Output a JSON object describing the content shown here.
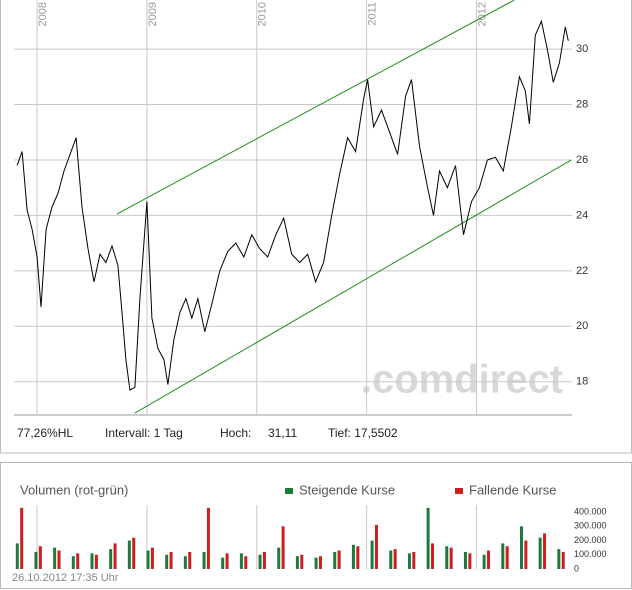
{
  "chart_data": [
    {
      "type": "line",
      "color": "#000000",
      "grid": true,
      "xlim": [
        2007.79,
        2012.87
      ],
      "xticks": [
        2008,
        2009,
        2010,
        2011,
        2012
      ],
      "ylim": [
        16.8,
        31.77
      ],
      "yticks": [
        18,
        20,
        22,
        24,
        26,
        28,
        30
      ],
      "x": [
        2007.818,
        2007.864,
        2007.909,
        2007.955,
        2008.0,
        2008.036,
        2008.082,
        2008.136,
        2008.191,
        2008.245,
        2008.3,
        2008.355,
        2008.409,
        2008.464,
        2008.518,
        2008.573,
        2008.627,
        2008.682,
        2008.736,
        2008.773,
        2008.809,
        2008.845,
        2008.891,
        2008.936,
        2009.0,
        2009.045,
        2009.1,
        2009.155,
        2009.191,
        2009.245,
        2009.3,
        2009.355,
        2009.409,
        2009.464,
        2009.527,
        2009.591,
        2009.664,
        2009.736,
        2009.809,
        2009.882,
        2009.955,
        2010.027,
        2010.1,
        2010.173,
        2010.245,
        2010.318,
        2010.391,
        2010.464,
        2010.536,
        2010.609,
        2010.682,
        2010.755,
        2010.827,
        2010.9,
        2010.973,
        2011.009,
        2011.064,
        2011.136,
        2011.209,
        2011.282,
        2011.355,
        2011.409,
        2011.482,
        2011.555,
        2011.609,
        2011.664,
        2011.736,
        2011.809,
        2011.882,
        2011.955,
        2012.027,
        2012.1,
        2012.173,
        2012.245,
        2012.318,
        2012.391,
        2012.445,
        2012.482,
        2012.536,
        2012.591,
        2012.645,
        2012.7,
        2012.755,
        2012.809,
        2012.836
      ],
      "values": [
        25.8,
        26.3,
        24.2,
        23.5,
        22.5,
        20.7,
        23.5,
        24.3,
        24.8,
        25.6,
        26.2,
        26.8,
        24.3,
        22.8,
        21.6,
        22.6,
        22.3,
        22.9,
        22.2,
        20.5,
        18.8,
        17.7,
        17.8,
        21.0,
        24.5,
        20.3,
        19.2,
        18.8,
        17.9,
        19.5,
        20.5,
        21.0,
        20.3,
        21.0,
        19.8,
        20.8,
        22.0,
        22.7,
        23.0,
        22.5,
        23.3,
        22.8,
        22.5,
        23.3,
        23.9,
        22.6,
        22.3,
        22.6,
        21.6,
        22.3,
        24.0,
        25.5,
        26.8,
        26.3,
        28.2,
        28.9,
        27.2,
        27.8,
        27.0,
        26.2,
        28.3,
        28.9,
        26.5,
        25.0,
        24.0,
        25.6,
        25.0,
        25.8,
        23.3,
        24.5,
        25.0,
        26.0,
        26.1,
        25.6,
        27.2,
        29.0,
        28.5,
        27.3,
        30.5,
        31.0,
        30.0,
        28.8,
        29.5,
        30.8,
        30.3
      ],
      "trendlines": [
        {
          "color": "#1f8f1f",
          "x": [
            2008.727,
            2012.345
          ],
          "y": [
            24.05,
            31.77
          ]
        },
        {
          "color": "#1f8f1f",
          "x": [
            2008.891,
            2012.864
          ],
          "y": [
            16.87,
            26.0
          ]
        }
      ],
      "stats": [
        "77,26%HL",
        "Intervall: 1 Tag",
        "Hoch:",
        "31,11",
        "Tief: 17,5502"
      ]
    },
    {
      "type": "bar",
      "title": "Volumen (rot-grün)",
      "grid": true,
      "xlim": [
        2007.79,
        2012.87
      ],
      "xticks": [
        2008,
        2009,
        2010,
        2011,
        2012
      ],
      "ylim": [
        0,
        450000
      ],
      "yticks": [
        {
          "value": 400000,
          "label": "400.000"
        },
        {
          "value": 300000,
          "label": "300.000"
        },
        {
          "value": 200000,
          "label": "200.000"
        },
        {
          "value": 100000,
          "label": "100.000"
        },
        0
      ],
      "series": [
        {
          "name": "Steigende Kurse",
          "color": "#1e7a3c",
          "x": [
            2007.82,
            2007.99,
            2008.16,
            2008.33,
            2008.5,
            2008.67,
            2008.84,
            2009.01,
            2009.18,
            2009.35,
            2009.52,
            2009.69,
            2009.86,
            2010.03,
            2010.2,
            2010.37,
            2010.54,
            2010.71,
            2010.88,
            2011.05,
            2011.22,
            2011.39,
            2011.56,
            2011.73,
            2011.9,
            2012.07,
            2012.24,
            2012.41,
            2012.58,
            2012.75
          ],
          "values": [
            180000,
            120000,
            150000,
            90000,
            110000,
            140000,
            200000,
            130000,
            100000,
            90000,
            120000,
            80000,
            110000,
            100000,
            150000,
            90000,
            80000,
            120000,
            170000,
            200000,
            130000,
            110000,
            430000,
            160000,
            120000,
            100000,
            180000,
            300000,
            220000,
            140000
          ]
        },
        {
          "name": "Fallende Kurse",
          "color": "#cc1f1f",
          "x": [
            2007.86,
            2008.03,
            2008.2,
            2008.37,
            2008.54,
            2008.71,
            2008.88,
            2009.05,
            2009.22,
            2009.39,
            2009.56,
            2009.73,
            2009.9,
            2010.07,
            2010.24,
            2010.41,
            2010.58,
            2010.75,
            2010.92,
            2011.09,
            2011.26,
            2011.43,
            2011.6,
            2011.77,
            2011.94,
            2012.11,
            2012.28,
            2012.45,
            2012.62,
            2012.79
          ],
          "values": [
            430000,
            160000,
            130000,
            110000,
            100000,
            180000,
            220000,
            150000,
            120000,
            120000,
            430000,
            110000,
            90000,
            120000,
            300000,
            100000,
            90000,
            130000,
            160000,
            310000,
            140000,
            120000,
            180000,
            150000,
            110000,
            130000,
            160000,
            200000,
            250000,
            120000
          ]
        }
      ]
    }
  ],
  "watermark": ".comdirect",
  "footer": "26.10.2012 17:35 Uhr"
}
